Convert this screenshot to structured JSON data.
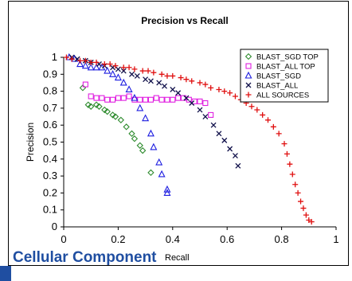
{
  "caption": "Cellular Component",
  "chart_data": {
    "type": "scatter",
    "title": "Precision vs Recall",
    "xlabel": "Recall",
    "ylabel": "Precision",
    "xlim": [
      0,
      1
    ],
    "ylim": [
      0,
      1
    ],
    "xticks": [
      "0",
      "0.2",
      "0.4",
      "0.6",
      "0.8",
      "1"
    ],
    "yticks": [
      "0",
      "0.1",
      "0.2",
      "0.3",
      "0.4",
      "0.5",
      "0.6",
      "0.7",
      "0.8",
      "0.9",
      "1"
    ],
    "grid": false,
    "legend_position": "top-right",
    "series": [
      {
        "name": "BLAST_SGD TOP",
        "marker": "diamond",
        "color": "#2e8b2e",
        "points": [
          [
            0.07,
            0.82
          ],
          [
            0.09,
            0.72
          ],
          [
            0.1,
            0.71
          ],
          [
            0.12,
            0.72
          ],
          [
            0.13,
            0.71
          ],
          [
            0.15,
            0.69
          ],
          [
            0.16,
            0.68
          ],
          [
            0.18,
            0.66
          ],
          [
            0.19,
            0.65
          ],
          [
            0.21,
            0.63
          ],
          [
            0.23,
            0.59
          ],
          [
            0.25,
            0.55
          ],
          [
            0.26,
            0.52
          ],
          [
            0.28,
            0.48
          ],
          [
            0.29,
            0.45
          ],
          [
            0.32,
            0.32
          ]
        ]
      },
      {
        "name": "BLAST_ALL TOP",
        "marker": "square",
        "color": "#e020e0",
        "points": [
          [
            0.08,
            0.84
          ],
          [
            0.1,
            0.77
          ],
          [
            0.12,
            0.76
          ],
          [
            0.14,
            0.76
          ],
          [
            0.16,
            0.75
          ],
          [
            0.18,
            0.75
          ],
          [
            0.2,
            0.76
          ],
          [
            0.22,
            0.76
          ],
          [
            0.24,
            0.77
          ],
          [
            0.26,
            0.75
          ],
          [
            0.28,
            0.75
          ],
          [
            0.3,
            0.75
          ],
          [
            0.32,
            0.75
          ],
          [
            0.34,
            0.76
          ],
          [
            0.36,
            0.75
          ],
          [
            0.38,
            0.75
          ],
          [
            0.4,
            0.75
          ],
          [
            0.42,
            0.76
          ],
          [
            0.44,
            0.76
          ],
          [
            0.46,
            0.75
          ],
          [
            0.48,
            0.74
          ],
          [
            0.5,
            0.74
          ],
          [
            0.52,
            0.73
          ],
          [
            0.54,
            0.66
          ]
        ]
      },
      {
        "name": "BLAST_SGD",
        "marker": "triangle",
        "color": "#1d1de0",
        "points": [
          [
            0.02,
            1.0
          ],
          [
            0.04,
            0.99
          ],
          [
            0.06,
            0.96
          ],
          [
            0.08,
            0.95
          ],
          [
            0.1,
            0.94
          ],
          [
            0.12,
            0.94
          ],
          [
            0.14,
            0.94
          ],
          [
            0.16,
            0.92
          ],
          [
            0.18,
            0.9
          ],
          [
            0.2,
            0.88
          ],
          [
            0.22,
            0.85
          ],
          [
            0.24,
            0.81
          ],
          [
            0.26,
            0.76
          ],
          [
            0.28,
            0.7
          ],
          [
            0.3,
            0.64
          ],
          [
            0.32,
            0.55
          ],
          [
            0.33,
            0.47
          ],
          [
            0.35,
            0.38
          ],
          [
            0.36,
            0.31
          ],
          [
            0.38,
            0.22
          ],
          [
            0.38,
            0.2
          ]
        ]
      },
      {
        "name": "BLAST_ALL",
        "marker": "x",
        "color": "#10104a",
        "points": [
          [
            0.03,
            1.0
          ],
          [
            0.05,
            0.99
          ],
          [
            0.08,
            0.98
          ],
          [
            0.1,
            0.97
          ],
          [
            0.13,
            0.96
          ],
          [
            0.15,
            0.95
          ],
          [
            0.18,
            0.94
          ],
          [
            0.2,
            0.93
          ],
          [
            0.22,
            0.92
          ],
          [
            0.25,
            0.9
          ],
          [
            0.27,
            0.89
          ],
          [
            0.3,
            0.87
          ],
          [
            0.32,
            0.86
          ],
          [
            0.35,
            0.85
          ],
          [
            0.37,
            0.83
          ],
          [
            0.4,
            0.81
          ],
          [
            0.42,
            0.79
          ],
          [
            0.45,
            0.76
          ],
          [
            0.47,
            0.73
          ],
          [
            0.5,
            0.69
          ],
          [
            0.52,
            0.65
          ],
          [
            0.55,
            0.6
          ],
          [
            0.57,
            0.55
          ],
          [
            0.59,
            0.51
          ],
          [
            0.61,
            0.46
          ],
          [
            0.63,
            0.42
          ],
          [
            0.64,
            0.36
          ]
        ]
      },
      {
        "name": "ALL SOURCES",
        "marker": "plus",
        "color": "#e01010",
        "points": [
          [
            0.01,
            1.0
          ],
          [
            0.03,
            0.99
          ],
          [
            0.06,
            0.98
          ],
          [
            0.08,
            0.98
          ],
          [
            0.1,
            0.97
          ],
          [
            0.12,
            0.97
          ],
          [
            0.15,
            0.96
          ],
          [
            0.17,
            0.96
          ],
          [
            0.19,
            0.95
          ],
          [
            0.22,
            0.94
          ],
          [
            0.24,
            0.94
          ],
          [
            0.26,
            0.93
          ],
          [
            0.29,
            0.92
          ],
          [
            0.31,
            0.92
          ],
          [
            0.33,
            0.91
          ],
          [
            0.36,
            0.9
          ],
          [
            0.38,
            0.89
          ],
          [
            0.4,
            0.89
          ],
          [
            0.43,
            0.88
          ],
          [
            0.45,
            0.87
          ],
          [
            0.47,
            0.86
          ],
          [
            0.5,
            0.85
          ],
          [
            0.52,
            0.84
          ],
          [
            0.54,
            0.82
          ],
          [
            0.57,
            0.81
          ],
          [
            0.59,
            0.8
          ],
          [
            0.61,
            0.79
          ],
          [
            0.63,
            0.77
          ],
          [
            0.65,
            0.75
          ],
          [
            0.67,
            0.73
          ],
          [
            0.69,
            0.71
          ],
          [
            0.71,
            0.69
          ],
          [
            0.73,
            0.66
          ],
          [
            0.75,
            0.63
          ],
          [
            0.77,
            0.59
          ],
          [
            0.79,
            0.55
          ],
          [
            0.81,
            0.49
          ],
          [
            0.82,
            0.43
          ],
          [
            0.83,
            0.37
          ],
          [
            0.84,
            0.31
          ],
          [
            0.85,
            0.25
          ],
          [
            0.86,
            0.2
          ],
          [
            0.87,
            0.15
          ],
          [
            0.88,
            0.11
          ],
          [
            0.89,
            0.07
          ],
          [
            0.9,
            0.04
          ],
          [
            0.91,
            0.03
          ]
        ]
      }
    ]
  }
}
